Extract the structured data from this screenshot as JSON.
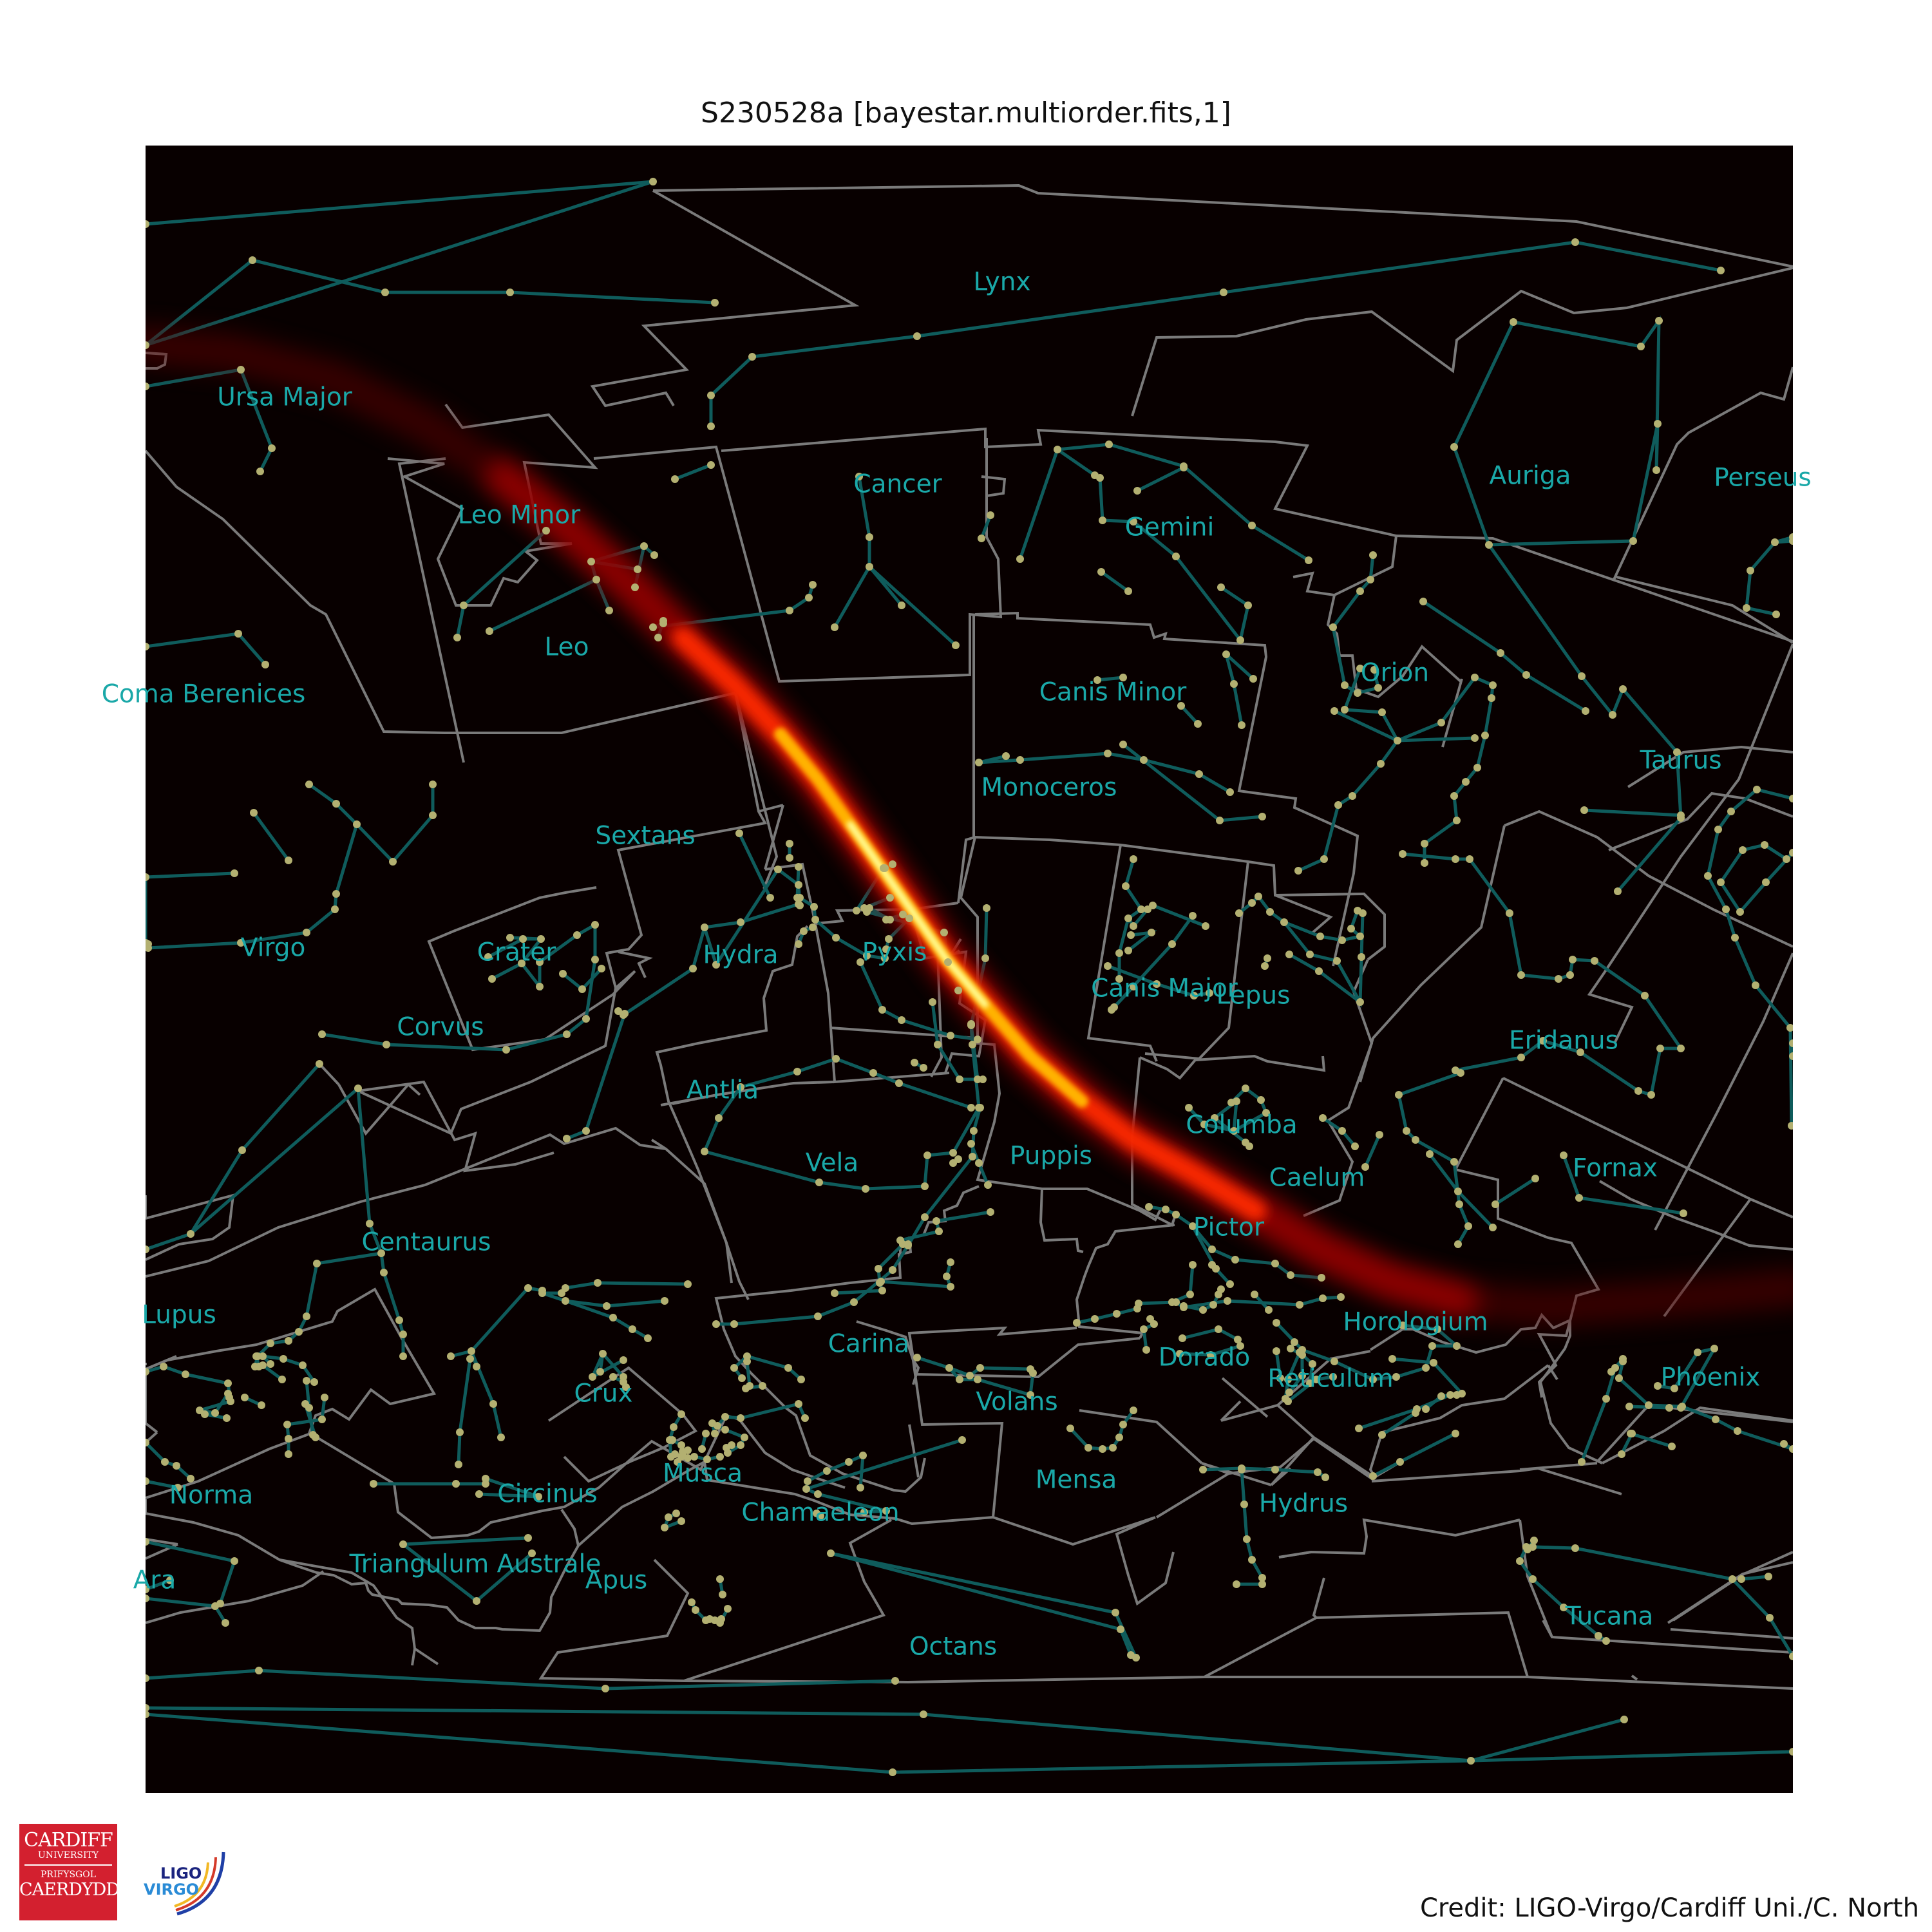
{
  "title": "S230528a [bayestar.multiorder.fits,1]",
  "credit": "Credit: LIGO-Virgo/Cardiff Uni./C. North",
  "logos": {
    "cardiff": [
      "CARDIFF",
      "UNIVERSITY",
      "PRIFYSGOL",
      "CAERDYDD"
    ],
    "ligo_virgo": [
      "LIGO",
      "VIRGO"
    ]
  },
  "colors": {
    "sky_background": "#080000",
    "constellation_lines": "#0f5c5c",
    "constellation_boundaries": "#7a7a7a",
    "star_dots": "#b3b071",
    "labels": "#1aa8a8",
    "probability_peak": "#ffff9a",
    "probability_low": "#b00000"
  },
  "constellations": [
    "Lynx",
    "Ursa Major",
    "Perseus",
    "Auriga",
    "Cancer",
    "Leo Minor",
    "Gemini",
    "Leo",
    "Coma Berenices",
    "Canis Minor",
    "Orion",
    "Taurus",
    "Monoceros",
    "Sextans",
    "Virgo",
    "Crater",
    "Hydra",
    "Pyxis",
    "Canis Major",
    "Lepus",
    "Corvus",
    "Eridanus",
    "Antlia",
    "Columba",
    "Vela",
    "Puppis",
    "Fornax",
    "Caelum",
    "Centaurus",
    "Pictor",
    "Lupus",
    "Horologium",
    "Carina",
    "Dorado",
    "Reticulum",
    "Phoenix",
    "Crux",
    "Volans",
    "Musca",
    "Mensa",
    "Circinus",
    "Hydrus",
    "Norma",
    "Chamaeleon",
    "Triangulum Australe",
    "Apus",
    "Ara",
    "Tucana",
    "Octans"
  ]
}
